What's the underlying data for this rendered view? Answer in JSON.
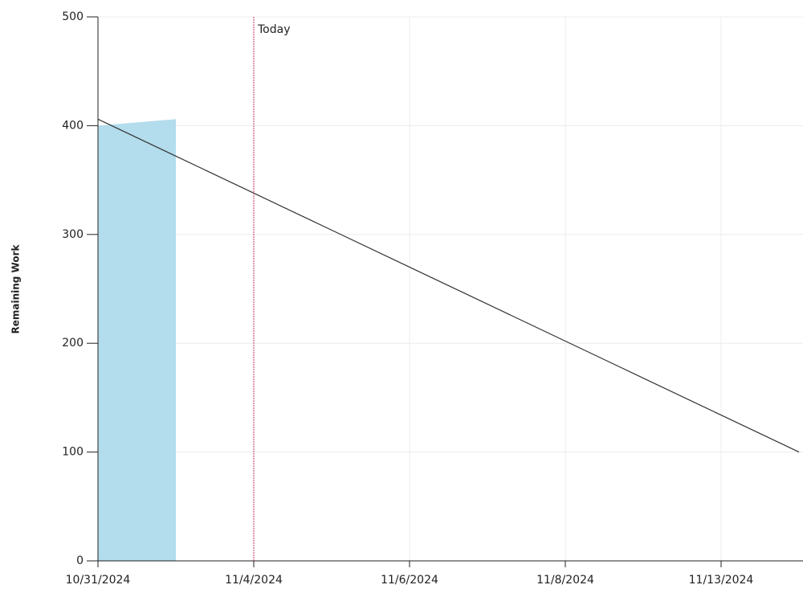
{
  "chart_data": {
    "type": "area",
    "y_label": "Remaining Work",
    "categories": [
      "10/31/2024",
      null,
      "11/4/2024",
      null,
      "11/6/2024",
      null,
      "11/8/2024",
      null,
      "11/13/2024",
      null
    ],
    "series": [
      {
        "kind": "area",
        "color": "#b3dcec",
        "values": [
          400,
          406,
          null,
          null,
          null,
          null,
          null,
          null,
          null,
          null
        ]
      },
      {
        "kind": "line",
        "color": "#333333",
        "values": [
          406,
          372,
          338,
          304,
          270,
          236,
          202,
          168,
          134,
          100
        ]
      }
    ],
    "ylim": [
      0,
      500
    ],
    "yticks": [
      0,
      100,
      200,
      300,
      400,
      500
    ],
    "grid": true,
    "marker": {
      "label": "Today",
      "category": "11/4/2024",
      "color": "#c0396b"
    }
  }
}
